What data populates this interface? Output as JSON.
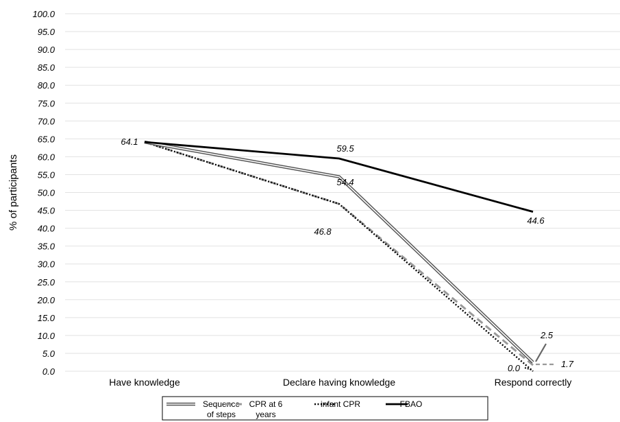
{
  "chart_data": {
    "type": "line",
    "categories": [
      "Have knowledge",
      "Declare having knowledge",
      "Respond correctly"
    ],
    "ylabel": "% of participants",
    "ylim": [
      0,
      100
    ],
    "ytick_step": 5,
    "grid": true,
    "legend_position": "bottom",
    "series": [
      {
        "name": "Sequence of steps",
        "legend_lines": [
          "Sequence",
          "of steps"
        ],
        "style": "double",
        "color": "#555555",
        "values": [
          64.1,
          54.4,
          2.5
        ],
        "labels": [
          "64.1",
          "54.4",
          "2.5"
        ]
      },
      {
        "name": "CPR at 6 years",
        "legend_lines": [
          "CPR at 6",
          "years"
        ],
        "style": "dashed",
        "color": "#999999",
        "values": [
          64.1,
          46.8,
          1.7
        ],
        "labels": [
          "",
          "",
          "1.7"
        ]
      },
      {
        "name": "infant CPR",
        "legend_lines": [
          "infant CPR"
        ],
        "style": "dotted",
        "color": "#000000",
        "values": [
          64.1,
          46.8,
          0.0
        ],
        "labels": [
          "",
          "46.8",
          "0.0"
        ]
      },
      {
        "name": "FBAO",
        "legend_lines": [
          "FBAO"
        ],
        "style": "solid",
        "color": "#000000",
        "values": [
          64.1,
          59.5,
          44.6
        ],
        "labels": [
          "",
          "59.5",
          "44.6"
        ]
      }
    ]
  }
}
